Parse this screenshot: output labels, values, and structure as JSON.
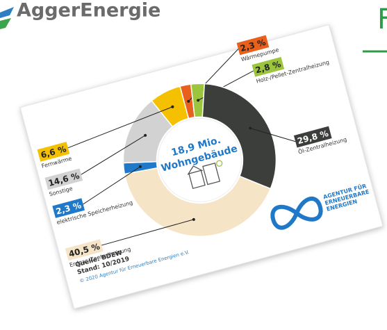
{
  "brand": "AggerEnergie",
  "heading": "F",
  "chart_data": {
    "type": "pie",
    "donut": true,
    "center_text": [
      "18,9 Mio.",
      "Wohngebäude"
    ],
    "categories": [
      "Wärmepumpe",
      "Holz-/Pellet-Zentralheizung",
      "Öl-Zentralheizung",
      "Erdgas-Zentralheizung",
      "elektrische Speicherheizung",
      "Sonstige",
      "Fernwärme"
    ],
    "values": [
      2.3,
      2.8,
      29.8,
      40.5,
      2.3,
      14.6,
      6.6
    ],
    "value_labels": [
      "2,3 %",
      "2,8 %",
      "29,8 %",
      "40,5 %",
      "2,3 %",
      "14,6 %",
      "6,6 %"
    ],
    "colors": [
      "#e8601c",
      "#9bc53d",
      "#3b3e3b",
      "#f6e4c6",
      "#1f78c8",
      "#d2d2d2",
      "#f5c000"
    ]
  },
  "source": [
    "Quelle: BDEW",
    "Stand: 10/2019"
  ],
  "copyright": "© 2020 Agentur für Erneuerbare Energien e.V.",
  "agency_logo": [
    "AGENTUR FÜR",
    "ERNEUERBARE",
    "ENERGIEN"
  ]
}
